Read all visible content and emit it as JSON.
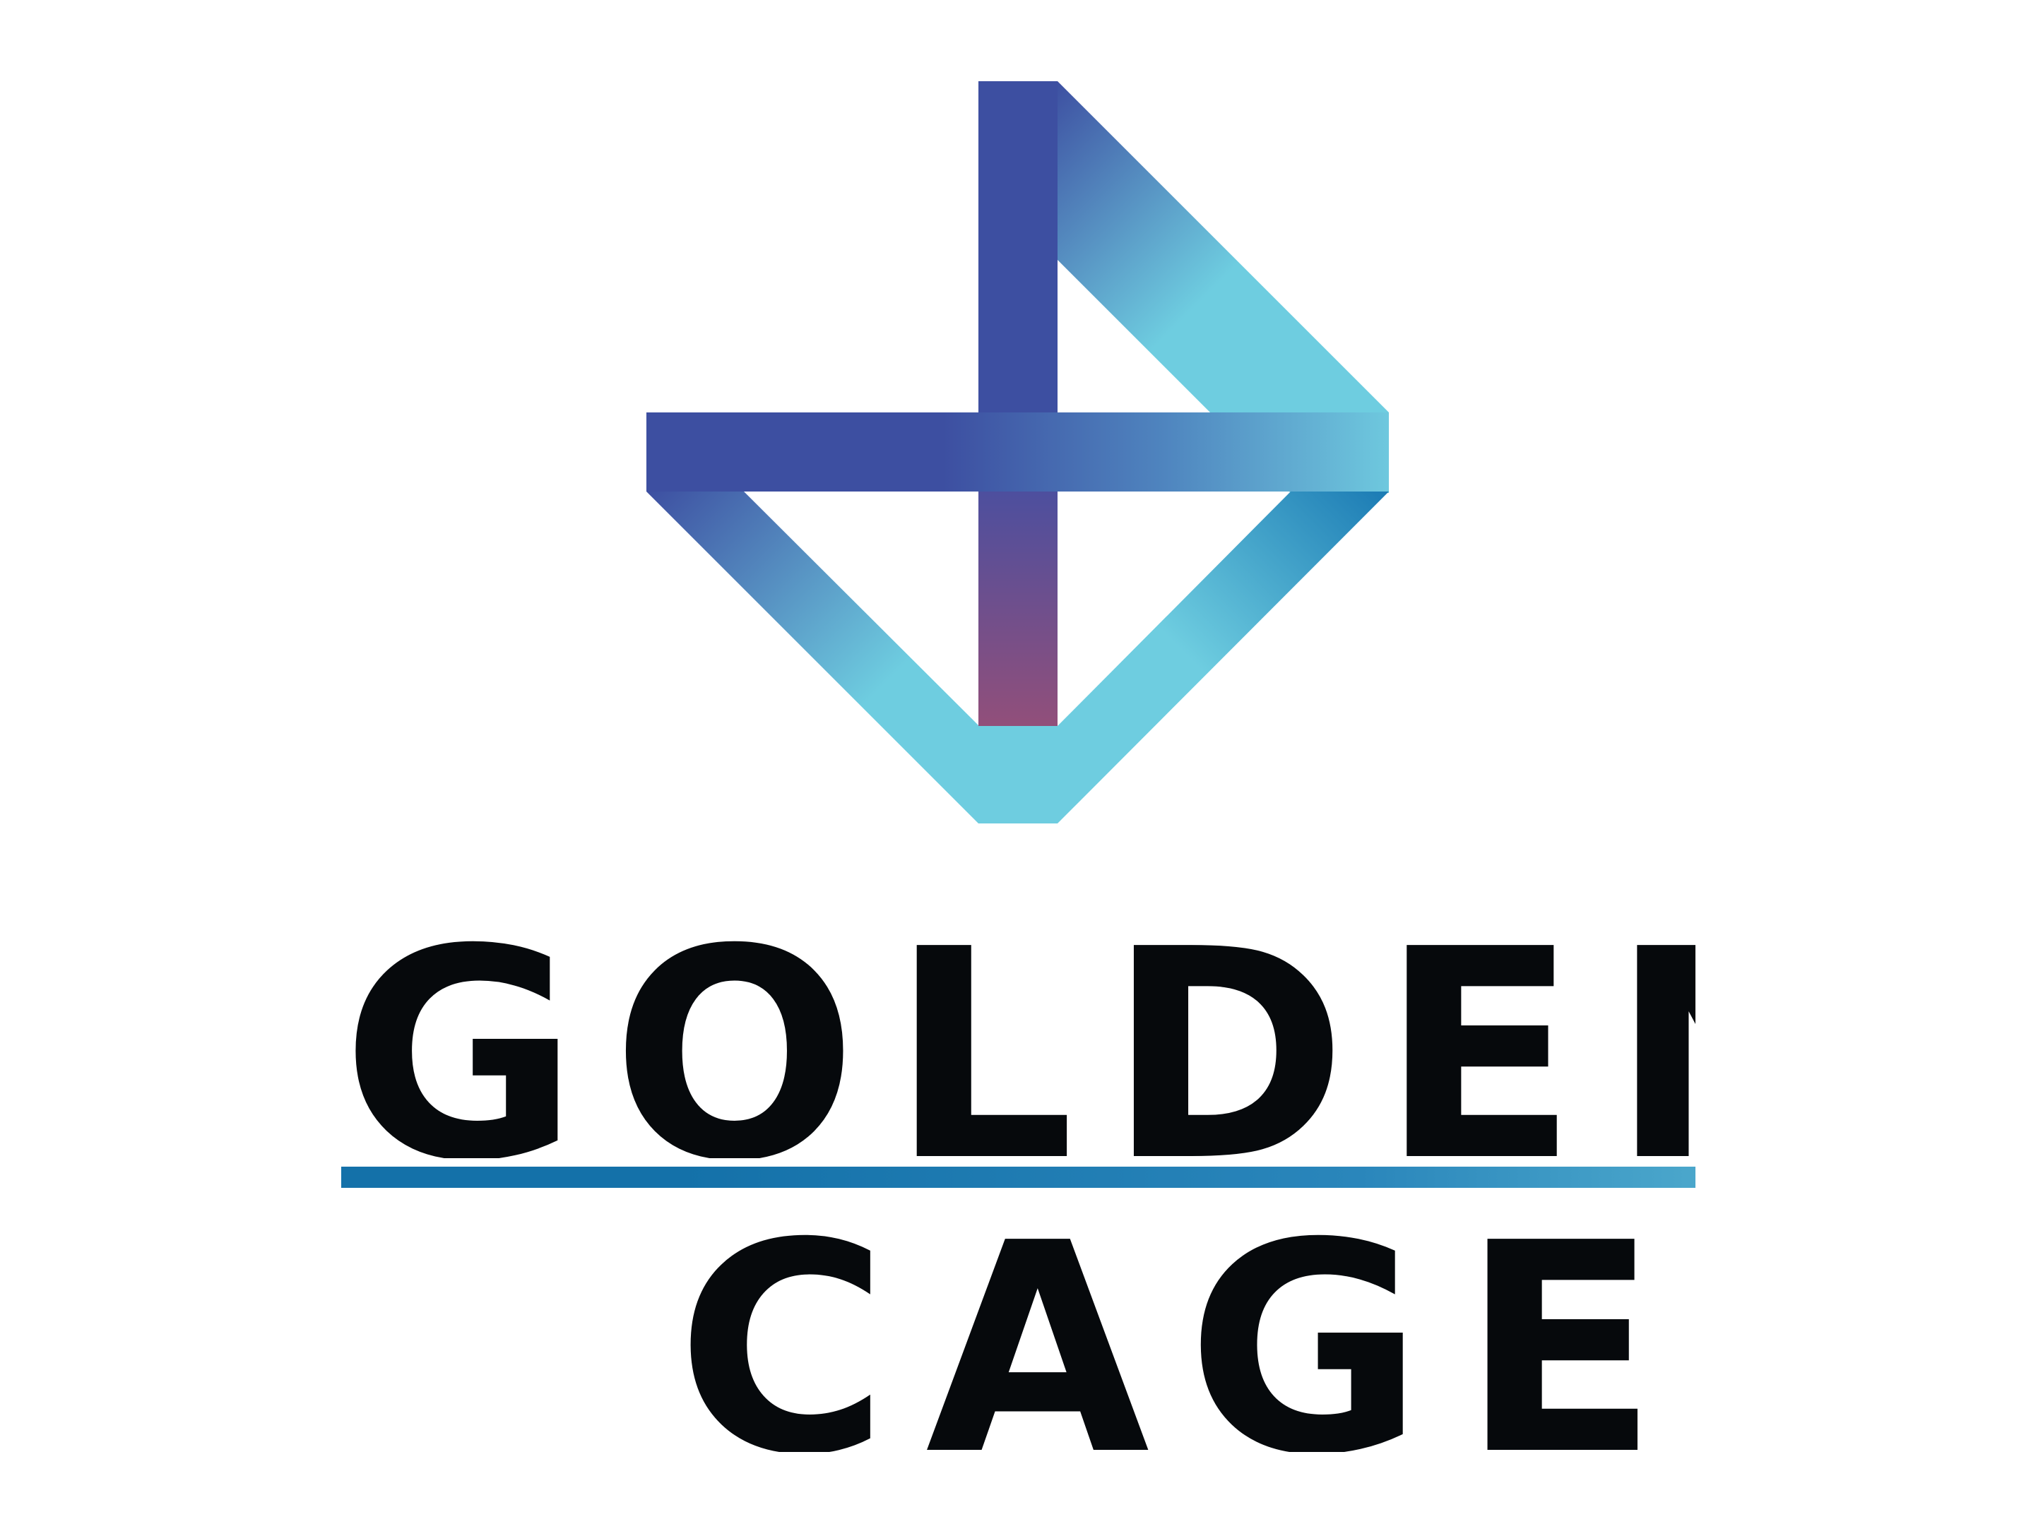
{
  "brand": {
    "name_line_1": "GOLDEN",
    "name_line_2": "CAGE"
  },
  "colors": {
    "text": "#06090c",
    "indigo": "#3d4fa1",
    "cyan": "#6ecde0",
    "steel_blue": "#1b7bb4",
    "plum": "#924f7a",
    "background": "#ffffff"
  },
  "icons": {
    "mark": "golden-cage-logo-mark"
  }
}
